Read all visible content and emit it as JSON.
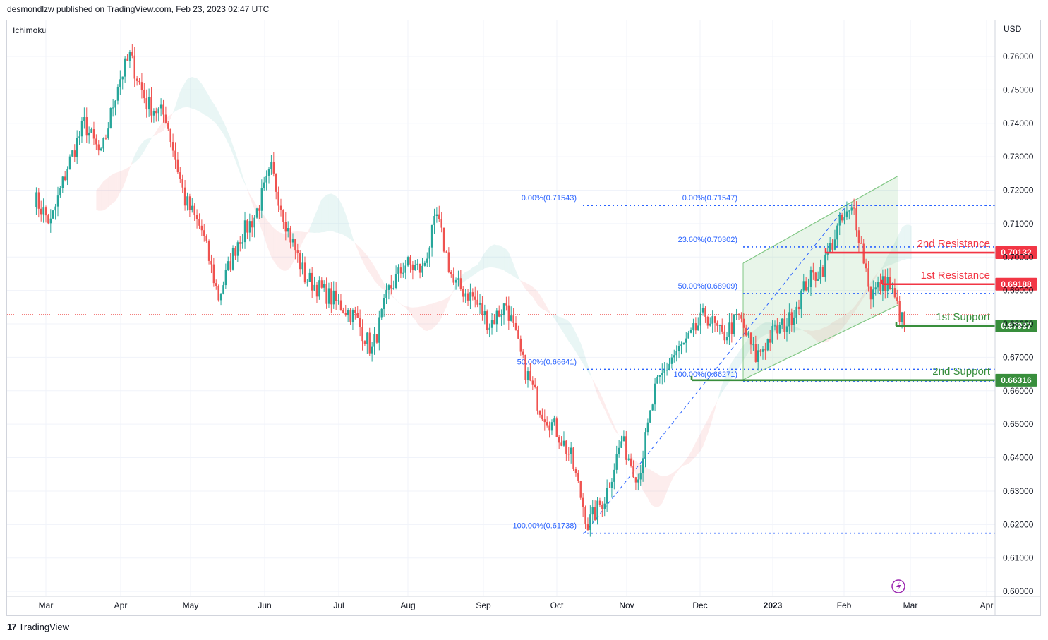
{
  "header": {
    "text": "desmondlzw published on TradingView.com, Feb 23, 2023 02:47 UTC"
  },
  "indicator": {
    "label": "Ichimoku"
  },
  "footer": {
    "brand": "TradingView"
  },
  "colors": {
    "up": "#26a69a",
    "down": "#ef5350",
    "fib": "#2962ff",
    "resistance": "#f23645",
    "support": "#388e3c",
    "channel": "#81c784"
  },
  "chart_data": {
    "type": "candlestick",
    "currency": "USD",
    "ylim": [
      0.6,
      0.764
    ],
    "y_ticks": [
      "0.76000",
      "0.75000",
      "0.74000",
      "0.73000",
      "0.72000",
      "0.71000",
      "0.70000",
      "0.69000",
      "0.68000",
      "0.67000",
      "0.66000",
      "0.65000",
      "0.64000",
      "0.63000",
      "0.62000",
      "0.61000",
      "0.60000"
    ],
    "x_months": [
      "Mar",
      "Apr",
      "May",
      "Jun",
      "Jul",
      "Aug",
      "Sep",
      "Oct",
      "Nov",
      "Dec",
      "2023",
      "Feb",
      "Mar",
      "Apr"
    ],
    "price_path": [
      {
        "date": "2022-02-24",
        "price": 0.718
      },
      {
        "date": "2022-03-03",
        "price": 0.71
      },
      {
        "date": "2022-03-10",
        "price": 0.727
      },
      {
        "date": "2022-03-17",
        "price": 0.74
      },
      {
        "date": "2022-03-24",
        "price": 0.73
      },
      {
        "date": "2022-03-31",
        "price": 0.752
      },
      {
        "date": "2022-04-05",
        "price": 0.76
      },
      {
        "date": "2022-04-12",
        "price": 0.746
      },
      {
        "date": "2022-04-20",
        "price": 0.742
      },
      {
        "date": "2022-04-28",
        "price": 0.717
      },
      {
        "date": "2022-05-05",
        "price": 0.708
      },
      {
        "date": "2022-05-12",
        "price": 0.688
      },
      {
        "date": "2022-05-20",
        "price": 0.705
      },
      {
        "date": "2022-05-27",
        "price": 0.712
      },
      {
        "date": "2022-06-03",
        "price": 0.726
      },
      {
        "date": "2022-06-10",
        "price": 0.708
      },
      {
        "date": "2022-06-17",
        "price": 0.694
      },
      {
        "date": "2022-06-24",
        "price": 0.69
      },
      {
        "date": "2022-07-01",
        "price": 0.686
      },
      {
        "date": "2022-07-08",
        "price": 0.682
      },
      {
        "date": "2022-07-15",
        "price": 0.672
      },
      {
        "date": "2022-07-22",
        "price": 0.69
      },
      {
        "date": "2022-07-29",
        "price": 0.698
      },
      {
        "date": "2022-08-05",
        "price": 0.696
      },
      {
        "date": "2022-08-11",
        "price": 0.712
      },
      {
        "date": "2022-08-18",
        "price": 0.692
      },
      {
        "date": "2022-08-26",
        "price": 0.688
      },
      {
        "date": "2022-09-02",
        "price": 0.68
      },
      {
        "date": "2022-09-09",
        "price": 0.686
      },
      {
        "date": "2022-09-16",
        "price": 0.668
      },
      {
        "date": "2022-09-23",
        "price": 0.655
      },
      {
        "date": "2022-09-30",
        "price": 0.648
      },
      {
        "date": "2022-10-06",
        "price": 0.64
      },
      {
        "date": "2022-10-13",
        "price": 0.62
      },
      {
        "date": "2022-10-20",
        "price": 0.628
      },
      {
        "date": "2022-10-27",
        "price": 0.645
      },
      {
        "date": "2022-11-03",
        "price": 0.634
      },
      {
        "date": "2022-11-10",
        "price": 0.66
      },
      {
        "date": "2022-11-17",
        "price": 0.67
      },
      {
        "date": "2022-11-24",
        "price": 0.675
      },
      {
        "date": "2022-12-01",
        "price": 0.683
      },
      {
        "date": "2022-12-08",
        "price": 0.676
      },
      {
        "date": "2022-12-15",
        "price": 0.682
      },
      {
        "date": "2022-12-22",
        "price": 0.67
      },
      {
        "date": "2022-12-29",
        "price": 0.677
      },
      {
        "date": "2023-01-05",
        "price": 0.681
      },
      {
        "date": "2023-01-12",
        "price": 0.692
      },
      {
        "date": "2023-01-19",
        "price": 0.697
      },
      {
        "date": "2023-01-26",
        "price": 0.71
      },
      {
        "date": "2023-02-01",
        "price": 0.714
      },
      {
        "date": "2023-02-08",
        "price": 0.689
      },
      {
        "date": "2023-02-15",
        "price": 0.693
      },
      {
        "date": "2023-02-22",
        "price": 0.679
      }
    ],
    "fib_left": [
      {
        "label": "0.00%(0.71543)",
        "value": 0.71543
      },
      {
        "label": "50.00%(0.66641)",
        "value": 0.66641
      },
      {
        "label": "100.00%(0.61738)",
        "value": 0.61738
      }
    ],
    "fib_right": [
      {
        "label": "0.00%(0.71547)",
        "value": 0.71547
      },
      {
        "label": "23.60%(0.70302)",
        "value": 0.70302
      },
      {
        "label": "50.00%(0.68909)",
        "value": 0.68909
      },
      {
        "label": "100.00%(0.66271)",
        "value": 0.66271
      }
    ],
    "levels": [
      {
        "name": "2nd Resistance",
        "value": 0.70132,
        "tag": "0.70132",
        "kind": "resistance"
      },
      {
        "name": "1st Resistance",
        "value": 0.69188,
        "tag": "0.69188",
        "kind": "resistance"
      },
      {
        "name": "1st Support",
        "value": 0.67937,
        "tag": "0.67937",
        "kind": "support"
      },
      {
        "name": "2nd Support",
        "value": 0.66316,
        "tag": "0.66316",
        "kind": "support"
      }
    ]
  }
}
